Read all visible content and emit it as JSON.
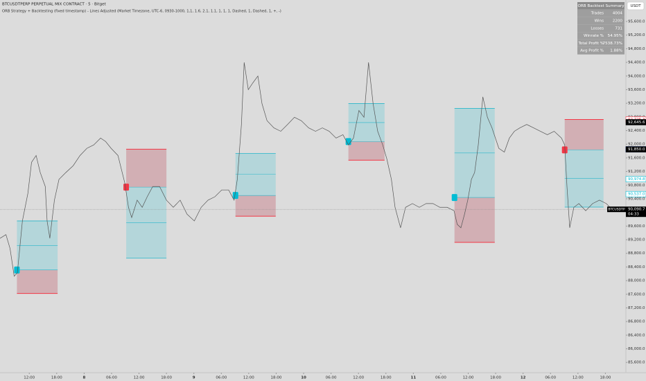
{
  "header": {
    "symbol": "BTCUSDTPERP PERPETUAL MIX CONTRACT · 5 · Bitget",
    "indicator": "ORB Strategy + Backtesting (fixed timestamp) - Lines Adjusted (Market Timezone, UTC-6, 0930-1000, 1,1, 1.6, 2.1, 1.1, 1, 1, 1, Dashed, 1, Dashed, 1, +, -)"
  },
  "currency": "USDT",
  "summary": {
    "title": "ORB Backtest Summary",
    "rows": [
      [
        "Trades",
        "4004"
      ],
      [
        "Wins",
        "2200"
      ],
      [
        "Losses",
        "731"
      ],
      [
        "Winrate %",
        "54.95%"
      ],
      [
        "Total Profit %",
        "7538.73%"
      ],
      [
        "Avg Profit %",
        "1.88%"
      ]
    ]
  },
  "chart_data": {
    "type": "line",
    "color": "#555555",
    "x": [
      5.6,
      6.9,
      7.8,
      8.7,
      9.4,
      10.5,
      11.7,
      12.5,
      13.5,
      14.4,
      15.5,
      15.9,
      16.5,
      17.5,
      18.5,
      20.0,
      21.6,
      23.1,
      24.6,
      26.1,
      27.6,
      28.7,
      29.9,
      31.4,
      32.9,
      33.7,
      34.4,
      35.6,
      36.7,
      37.8,
      39.0,
      40.5,
      42.0,
      43.5,
      45.0,
      46.5,
      48.1,
      49.6,
      51.1,
      52.6,
      54.1,
      55.6,
      56.8,
      57.5,
      58.4,
      59.0,
      59.9,
      60.9,
      62.0,
      62.9,
      64.0,
      65.5,
      67.0,
      68.5,
      70.0,
      71.5,
      73.1,
      74.6,
      76.1,
      77.6,
      79.1,
      80.6,
      81.8,
      82.9,
      84.1,
      85.2,
      86.2,
      87.2,
      88.2,
      89.3,
      90.2,
      91.2,
      92.0,
      93.2,
      94.3,
      95.8,
      97.3,
      98.8,
      100.3,
      101.8,
      103.4,
      104.9,
      105.6,
      106.4,
      107.2,
      107.9,
      108.7,
      109.4,
      110.2,
      111.2,
      112.2,
      113.2,
      114.7,
      115.9,
      117.0,
      118.1,
      119.3,
      120.8,
      122.3,
      123.8,
      125.3,
      126.8,
      128.4,
      129.1,
      129.6,
      130.2,
      131.1,
      132.2,
      133.7,
      135.2,
      136.7,
      138.2,
      139.0
    ],
    "values": [
      89240,
      89350,
      88940,
      88130,
      88230,
      89750,
      90560,
      91470,
      91670,
      91170,
      90760,
      89750,
      89240,
      90360,
      90970,
      91170,
      91370,
      91670,
      91880,
      91980,
      92180,
      92080,
      91880,
      91670,
      90860,
      90150,
      89850,
      90360,
      90150,
      90460,
      90760,
      90760,
      90360,
      90150,
      90360,
      89950,
      89750,
      90150,
      90360,
      90460,
      90660,
      90660,
      90360,
      90970,
      92580,
      94400,
      93600,
      93800,
      94000,
      93190,
      92690,
      92480,
      92380,
      92580,
      92790,
      92690,
      92480,
      92380,
      92480,
      92380,
      92180,
      92280,
      91980,
      92180,
      92990,
      92790,
      94400,
      93190,
      92380,
      91980,
      91570,
      90970,
      90150,
      89550,
      90150,
      90260,
      90150,
      90260,
      90260,
      90150,
      90150,
      90050,
      89650,
      89550,
      89950,
      90360,
      90970,
      91170,
      91980,
      93390,
      92790,
      92480,
      91880,
      91770,
      92180,
      92380,
      92480,
      92580,
      92480,
      92380,
      92280,
      92380,
      92180,
      91980,
      90760,
      89550,
      90150,
      90260,
      90050,
      90260,
      90360,
      90260,
      90150
    ],
    "xlim": [
      5.6,
      139.0
    ],
    "ylim": [
      85300,
      96230
    ],
    "xticks": [
      {
        "value": 12,
        "label": "12:00"
      },
      {
        "value": 18,
        "label": "18:00"
      },
      {
        "value": 24,
        "label": "8"
      },
      {
        "value": 30,
        "label": "06:00"
      },
      {
        "value": 36,
        "label": "12:00"
      },
      {
        "value": 42,
        "label": "18:00"
      },
      {
        "value": 48,
        "label": "9"
      },
      {
        "value": 54,
        "label": "06:00"
      },
      {
        "value": 60,
        "label": "12:00"
      },
      {
        "value": 66,
        "label": "18:00"
      },
      {
        "value": 72,
        "label": "10"
      },
      {
        "value": 78,
        "label": "06:00"
      },
      {
        "value": 84,
        "label": "12:00"
      },
      {
        "value": 90,
        "label": "18:00"
      },
      {
        "value": 96,
        "label": "11"
      },
      {
        "value": 102,
        "label": "06:00"
      },
      {
        "value": 108,
        "label": "12:00"
      },
      {
        "value": 114,
        "label": "18:00"
      },
      {
        "value": 120,
        "label": "12"
      },
      {
        "value": 126,
        "label": "06:00"
      },
      {
        "value": 132,
        "label": "12:00"
      },
      {
        "value": 138,
        "label": "18:00"
      }
    ],
    "yticks": [
      {
        "value": 85600,
        "label": "85,600.0"
      },
      {
        "value": 86000,
        "label": "86,000.0"
      },
      {
        "value": 86400,
        "label": "86,400.0"
      },
      {
        "value": 86800,
        "label": "86,800.0"
      },
      {
        "value": 87200,
        "label": "87,200.0"
      },
      {
        "value": 87600,
        "label": "87,600.0"
      },
      {
        "value": 88000,
        "label": "88,000.0"
      },
      {
        "value": 88400,
        "label": "88,400.0"
      },
      {
        "value": 88800,
        "label": "88,800.0"
      },
      {
        "value": 89200,
        "label": "89,200.0"
      },
      {
        "value": 89600,
        "label": "89,600.0"
      },
      {
        "value": 90000,
        "label": "90,000.0"
      },
      {
        "value": 90400,
        "label": "90,400.0"
      },
      {
        "value": 90800,
        "label": "90,800.0"
      },
      {
        "value": 91200,
        "label": "91,200.0"
      },
      {
        "value": 91600,
        "label": "91,600.0"
      },
      {
        "value": 92000,
        "label": "92,000.0"
      },
      {
        "value": 92400,
        "label": "92,400.0"
      },
      {
        "value": 92800,
        "label": "92,800.0"
      },
      {
        "value": 93200,
        "label": "93,200.0"
      },
      {
        "value": 93600,
        "label": "93,600.0"
      },
      {
        "value": 94000,
        "label": "94,000.0"
      },
      {
        "value": 94400,
        "label": "94,400.0"
      },
      {
        "value": 94800,
        "label": "94,800.0"
      },
      {
        "value": 95200,
        "label": "95,200.0"
      },
      {
        "value": 95600,
        "label": "95,600.0"
      }
    ],
    "trades": [
      {
        "start": 9.3,
        "end": 18.2,
        "entry": 88313,
        "target": 89750,
        "stop": 87624
      },
      {
        "start": 33.2,
        "end": 42.0,
        "entry": 90742,
        "target": 88657,
        "stop": 91855
      },
      {
        "start": 57.1,
        "end": 65.9,
        "entry": 90498,
        "target": 91733,
        "stop": 89890
      },
      {
        "start": 81.8,
        "end": 89.7,
        "entry": 92078,
        "target": 93191,
        "stop": 91531
      },
      {
        "start": 105.0,
        "end": 113.8,
        "entry": 90438,
        "target": 93049,
        "stop": 89122
      },
      {
        "start": 129.1,
        "end": 137.6,
        "entry": 91834,
        "target": 90155,
        "stop": 92726
      }
    ],
    "price_labels": [
      {
        "value": 92725.3,
        "label": "92,725.3",
        "color": "#f23645"
      },
      {
        "value": 92645.6,
        "label": "92,645.6",
        "color": "#000000"
      },
      {
        "value": 91850.0,
        "label": "91,850.0",
        "color": "#2962ff"
      },
      {
        "value": 91850.0,
        "label": "91,850.0",
        "color": "#000000"
      },
      {
        "value": 90974.8,
        "label": "90,974.8",
        "color": "#00bcd4"
      },
      {
        "value": 90537.0,
        "label": "90,537.0",
        "color": "#00bcd4"
      },
      {
        "value": 90090.7,
        "label": "90,090.7",
        "color": "#000000"
      }
    ],
    "last_symbol": "BTCUSDTP",
    "countdown": "04:33"
  }
}
